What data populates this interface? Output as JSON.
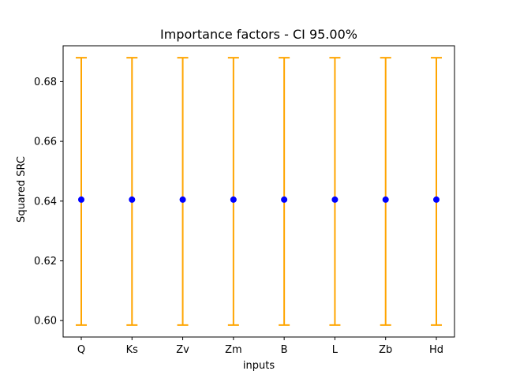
{
  "chart_data": {
    "type": "scatter",
    "title": "Importance factors - CI 95.00%",
    "xlabel": "inputs",
    "ylabel": "Squared SRC",
    "categories": [
      "Q",
      "Ks",
      "Zv",
      "Zm",
      "B",
      "L",
      "Zb",
      "Hd"
    ],
    "series": [
      {
        "values": [
          0.6405,
          0.6405,
          0.6405,
          0.6405,
          0.6405,
          0.6405,
          0.6405,
          0.6405
        ],
        "ci_lower": [
          0.5985,
          0.5985,
          0.5985,
          0.5985,
          0.5985,
          0.5985,
          0.5985,
          0.5985
        ],
        "ci_upper": [
          0.688,
          0.688,
          0.688,
          0.688,
          0.688,
          0.688,
          0.688,
          0.688
        ]
      }
    ],
    "ylim": [
      0.5945,
      0.692
    ],
    "yticks": [
      0.6,
      0.62,
      0.64,
      0.66,
      0.68
    ],
    "ytick_labels": [
      "0.60",
      "0.62",
      "0.64",
      "0.66",
      "0.68"
    ],
    "grid": false,
    "colors": {
      "marker": "#0000ff",
      "errorbar": "#ffa500"
    }
  }
}
